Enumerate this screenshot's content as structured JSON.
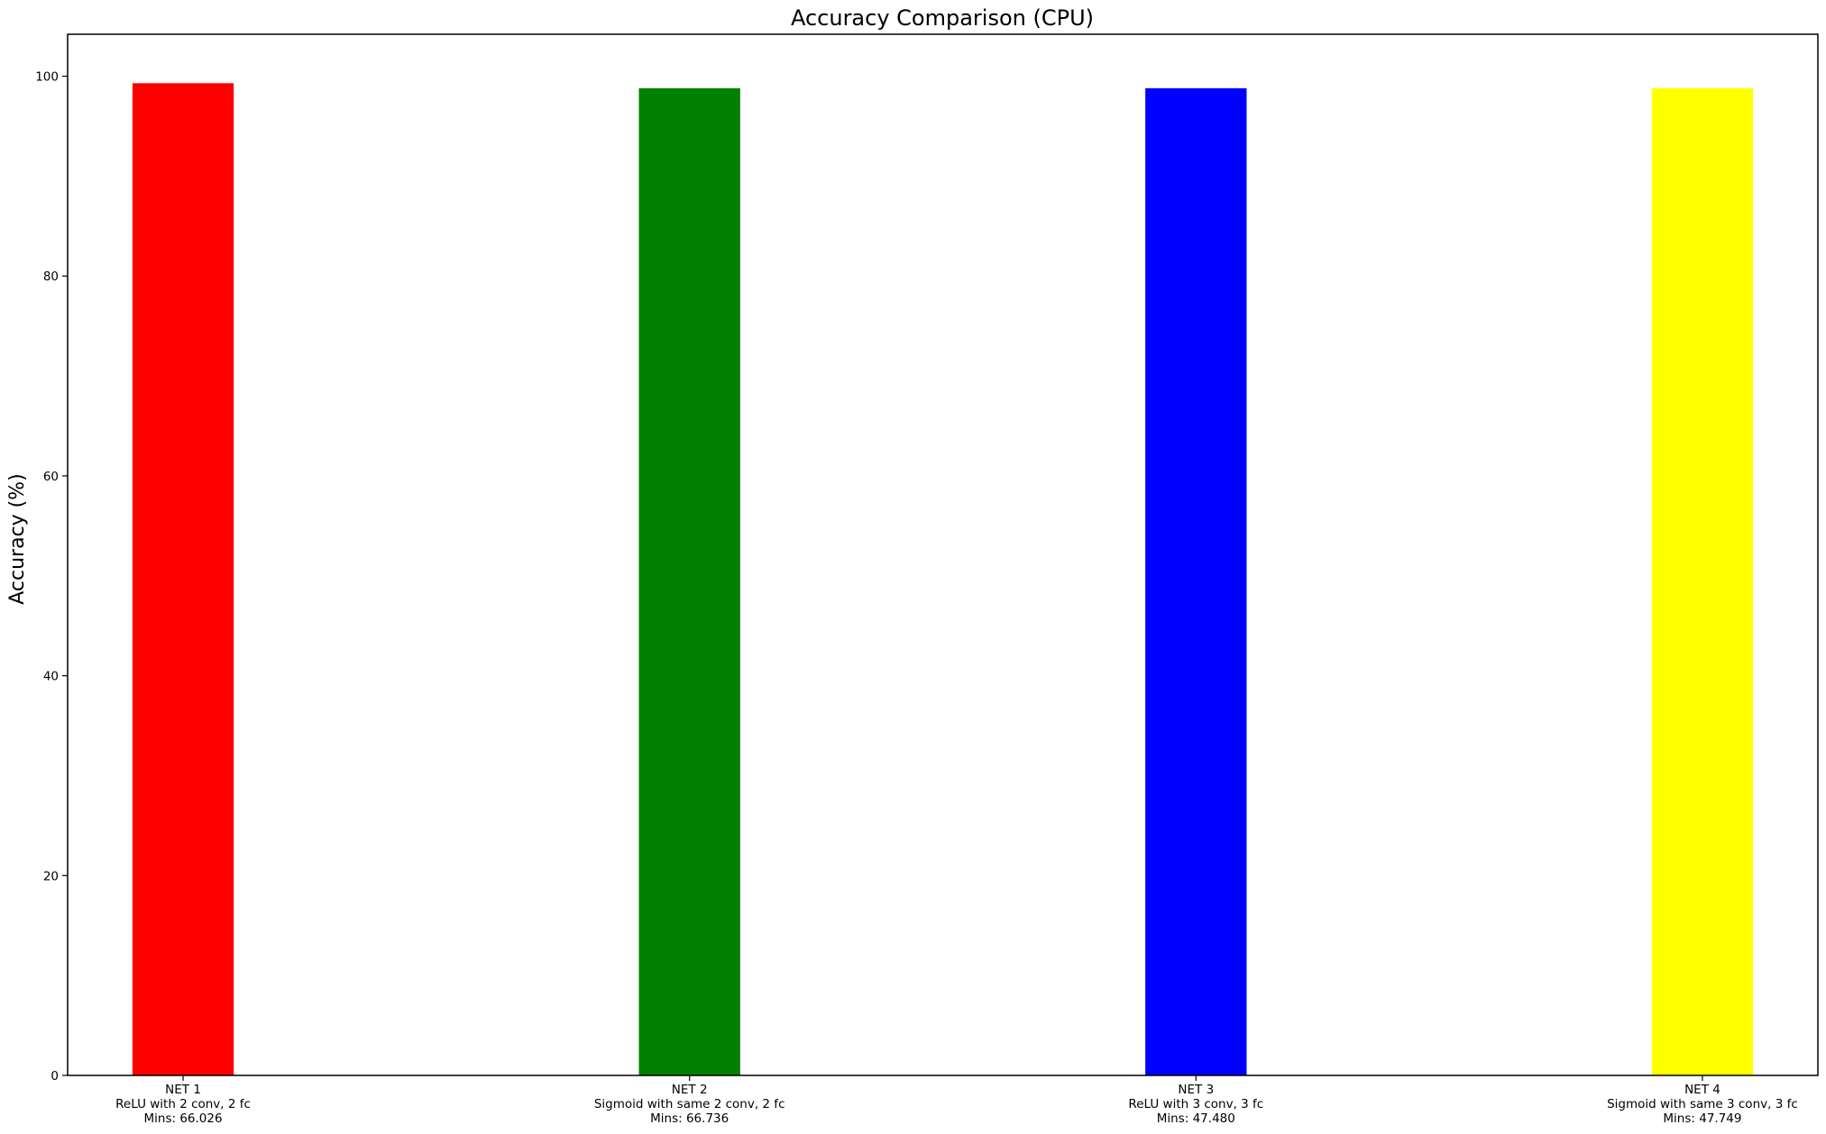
{
  "chart_data": {
    "type": "bar",
    "title": "Accuracy Comparison (CPU)",
    "xlabel": "",
    "ylabel": "Accuracy (%)",
    "ylim": [
      0,
      104.2
    ],
    "yticks": [
      0,
      20,
      40,
      60,
      80,
      100
    ],
    "grid": false,
    "legend": "none",
    "categories": [
      {
        "lines": [
          "NET 1",
          "ReLU with 2 conv, 2 fc",
          "Mins: 66.026"
        ],
        "value": 99.3,
        "color": "#ff0000"
      },
      {
        "lines": [
          "NET 2",
          "Sigmoid with same 2 conv, 2 fc",
          "Mins: 66.736"
        ],
        "value": 98.8,
        "color": "#008000"
      },
      {
        "lines": [
          "NET 3",
          "ReLU with 3 conv, 3 fc",
          "Mins: 47.480"
        ],
        "value": 98.8,
        "color": "#0000ff"
      },
      {
        "lines": [
          "NET 4",
          "Sigmoid with same 3 conv, 3 fc",
          "Mins: 47.749"
        ],
        "value": 98.8,
        "color": "#ffff00"
      }
    ]
  }
}
